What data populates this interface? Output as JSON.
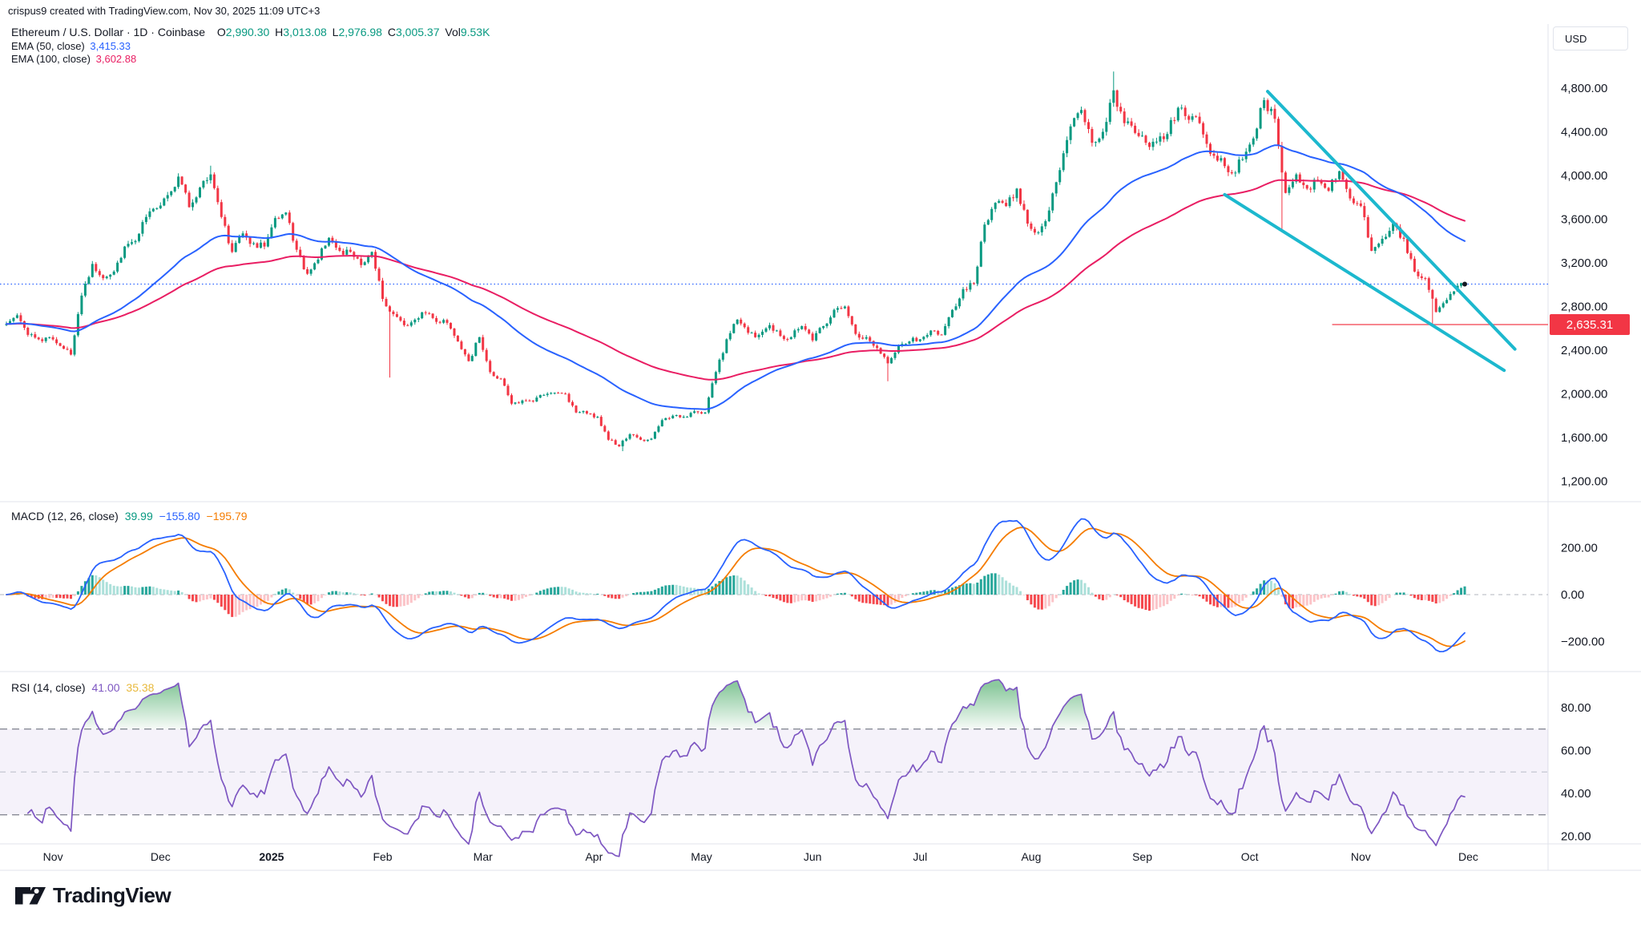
{
  "attribution": "crispus9 created with TradingView.com, Nov 30, 2025 11:09 UTC+3",
  "header": {
    "title": "Ethereum / U.S. Dollar · 1D · Coinbase",
    "o_label": "O",
    "o": "2,990.30",
    "h_label": "H",
    "h": "3,013.08",
    "l_label": "L",
    "l": "2,976.98",
    "c_label": "C",
    "c": "3,005.37",
    "vol_label": "Vol",
    "vol": "9.53K"
  },
  "indicators": {
    "ema50": {
      "label": "EMA (50, close)",
      "value": "3,415.33"
    },
    "ema100": {
      "label": "EMA (100, close)",
      "value": "3,602.88"
    },
    "macd": {
      "label": "MACD (12, 26, close)",
      "hist": "39.99",
      "macd": "−155.80",
      "signal": "−195.79"
    },
    "rsi": {
      "label": "RSI (14, close)",
      "value": "41.00",
      "ma": "35.38"
    }
  },
  "axis": {
    "currency": "USD",
    "price_badge": "2,635.31",
    "price_ticks": [
      {
        "price": 4800,
        "label": "4,800.00"
      },
      {
        "price": 4400,
        "label": "4,400.00"
      },
      {
        "price": 4000,
        "label": "4,000.00"
      },
      {
        "price": 3600,
        "label": "3,600.00"
      },
      {
        "price": 3200,
        "label": "3,200.00"
      },
      {
        "price": 2800,
        "label": "2,800.00"
      },
      {
        "price": 2400,
        "label": "2,400.00"
      },
      {
        "price": 2000,
        "label": "2,000.00"
      },
      {
        "price": 1600,
        "label": "1,600.00"
      },
      {
        "price": 1200,
        "label": "1,200.00"
      }
    ],
    "macd_ticks": [
      {
        "v": 200,
        "label": "200.00"
      },
      {
        "v": 0,
        "label": "0.00"
      },
      {
        "v": -200,
        "label": "−200.00"
      }
    ],
    "rsi_ticks": [
      {
        "v": 80,
        "label": "80.00"
      },
      {
        "v": 60,
        "label": "60.00"
      },
      {
        "v": 40,
        "label": "40.00"
      },
      {
        "v": 20,
        "label": "20.00"
      }
    ],
    "time_ticks": [
      {
        "label": "Nov",
        "day": 13
      },
      {
        "label": "Dec",
        "day": 43
      },
      {
        "label": "2025",
        "day": 74,
        "bold": true
      },
      {
        "label": "Feb",
        "day": 105
      },
      {
        "label": "Mar",
        "day": 133
      },
      {
        "label": "Apr",
        "day": 164
      },
      {
        "label": "May",
        "day": 194
      },
      {
        "label": "Jun",
        "day": 225
      },
      {
        "label": "Jul",
        "day": 255
      },
      {
        "label": "Aug",
        "day": 286
      },
      {
        "label": "Sep",
        "day": 317
      },
      {
        "label": "Oct",
        "day": 347
      },
      {
        "label": "Nov",
        "day": 378
      },
      {
        "label": "Dec",
        "day": 408
      }
    ]
  },
  "logo_text": "TradingView",
  "chart_data": {
    "type": "candlestick",
    "symbol": "Ethereum / U.S. Dollar",
    "exchange": "Coinbase",
    "interval": "1D",
    "start_date": "2024-10-19",
    "sample_day_step": 3,
    "last_day": 407,
    "close_samples": [
      2640,
      2720,
      2540,
      2500,
      2520,
      2440,
      2360,
      2900,
      3190,
      3060,
      3120,
      3350,
      3400,
      3620,
      3700,
      3820,
      3990,
      3710,
      3890,
      4010,
      3620,
      3300,
      3470,
      3380,
      3350,
      3610,
      3660,
      3320,
      3100,
      3230,
      3430,
      3310,
      3300,
      3180,
      3300,
      2870,
      2730,
      2630,
      2680,
      2740,
      2660,
      2650,
      2480,
      2300,
      2520,
      2200,
      2140,
      1910,
      1940,
      1930,
      1990,
      2010,
      2000,
      1830,
      1820,
      1790,
      1580,
      1520,
      1630,
      1580,
      1590,
      1760,
      1800,
      1790,
      1840,
      1830,
      2200,
      2500,
      2680,
      2560,
      2540,
      2630,
      2530,
      2520,
      2620,
      2490,
      2620,
      2770,
      2800,
      2550,
      2520,
      2420,
      2280,
      2440,
      2480,
      2500,
      2580,
      2540,
      2770,
      2960,
      3010,
      3550,
      3750,
      3720,
      3880,
      3560,
      3480,
      3680,
      4050,
      4450,
      4600,
      4300,
      4400,
      4780,
      4480,
      4390,
      4300,
      4310,
      4380,
      4620,
      4510,
      4480,
      4200,
      4160,
      4020,
      4150,
      4340,
      4690,
      4520,
      3840,
      4010,
      3880,
      3950,
      3860,
      4040,
      3790,
      3720,
      3310,
      3420,
      3560,
      3420,
      3120,
      3060,
      2750,
      2860,
      2990,
      3005
    ],
    "events": [
      {
        "day": 57,
        "high": 4090
      },
      {
        "day": 107,
        "low": 2150
      },
      {
        "day": 172,
        "low": 1475
      },
      {
        "day": 246,
        "low": 2115
      },
      {
        "day": 309,
        "high": 4952
      },
      {
        "day": 356,
        "low": 3480
      },
      {
        "day": 398,
        "low": 2635.31
      }
    ],
    "current_price_line": {
      "price": 3005.37
    },
    "red_line": {
      "price": 2635.31,
      "from_day": 370
    },
    "trendlines": [
      {
        "d1": 352,
        "p1": 4770,
        "d2": 421,
        "p2": 2410
      },
      {
        "d1": 340,
        "p1": 3825,
        "d2": 418,
        "p2": 2215
      }
    ],
    "rsi_levels": {
      "overbought": 70,
      "middle": 50,
      "oversold": 30
    },
    "ylim_price": [
      1200,
      4800
    ],
    "ylim_macd": [
      -200,
      200
    ],
    "ylim_rsi": [
      20,
      80
    ],
    "colors": {
      "up": "#089981",
      "down": "#f23645",
      "ema50": "#2962ff",
      "ema100": "#e91e63",
      "macd_line": "#2962ff",
      "signal_line": "#f57c00",
      "hist_up_grow": "#26a69a",
      "hist_up_fall": "#ace0da",
      "hist_dn_grow": "#fbc4c8",
      "hist_dn_fall": "#f5484d",
      "rsi_line": "#7e57c2",
      "rsi_ma": "#f2c55c",
      "trendline": "#1cb8ce",
      "price_line": "#2962ff",
      "red_line": "#f23645",
      "band_fill": "rgba(126,87,194,0.08)",
      "overbought_fill": "#2e9e4f"
    }
  }
}
